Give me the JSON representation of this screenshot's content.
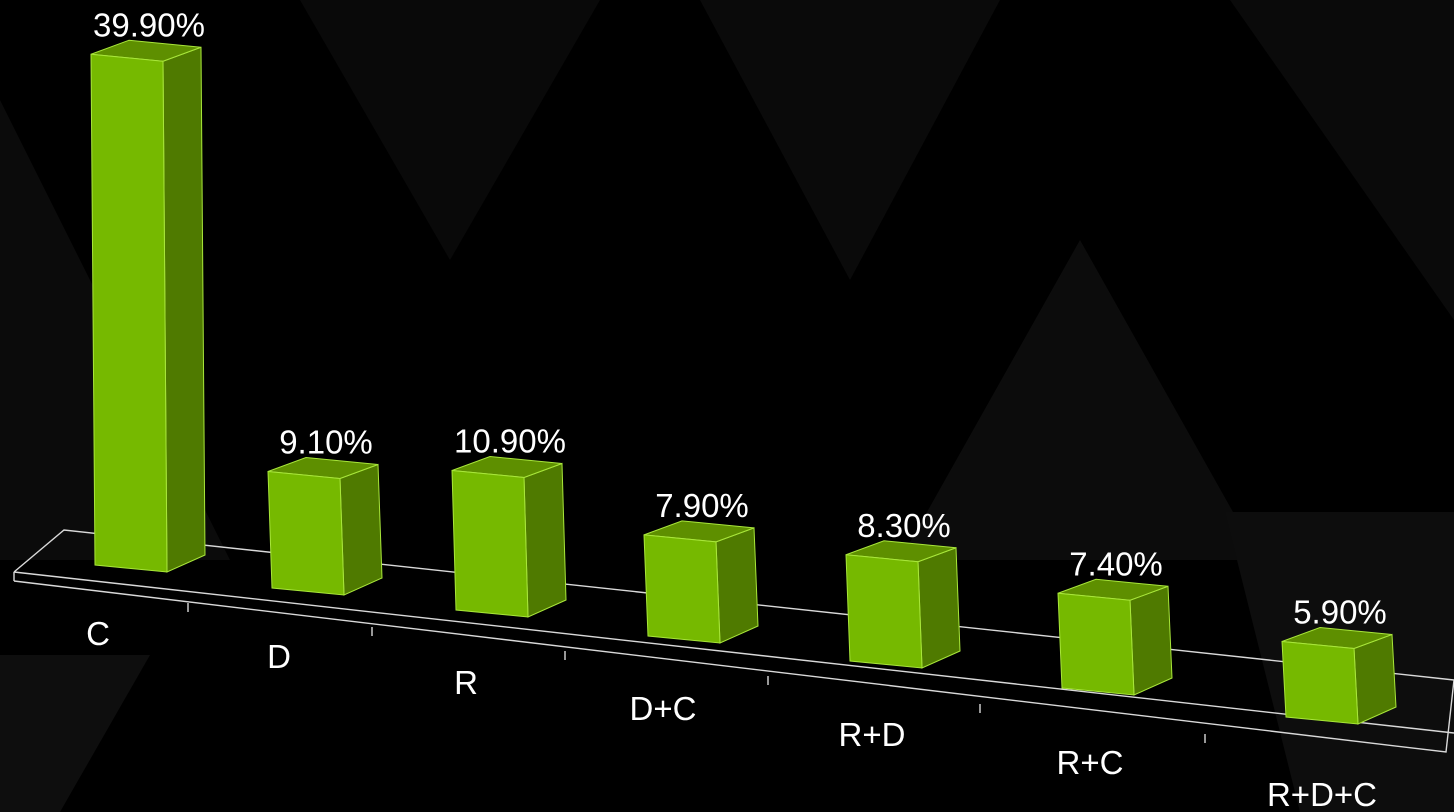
{
  "chart_data": {
    "type": "bar",
    "categories": [
      "C",
      "D",
      "R",
      "D+C",
      "R+D",
      "R+C",
      "R+D+C"
    ],
    "values": [
      39.9,
      9.1,
      10.9,
      7.9,
      8.3,
      7.4,
      5.9
    ],
    "value_labels": [
      "39.90%",
      "9.10%",
      "10.90%",
      "7.90%",
      "8.30%",
      "7.40%",
      "5.90%"
    ],
    "three_d": true,
    "grid": false,
    "legend": "none",
    "colors": {
      "background": "#000000",
      "bar_front": "#76b900",
      "bar_side": "#4f7a00",
      "bar_top": "#5e8f00",
      "edge": "#a8e63a",
      "floor_line": "#d9d9d9",
      "text": "#ffffff"
    }
  }
}
